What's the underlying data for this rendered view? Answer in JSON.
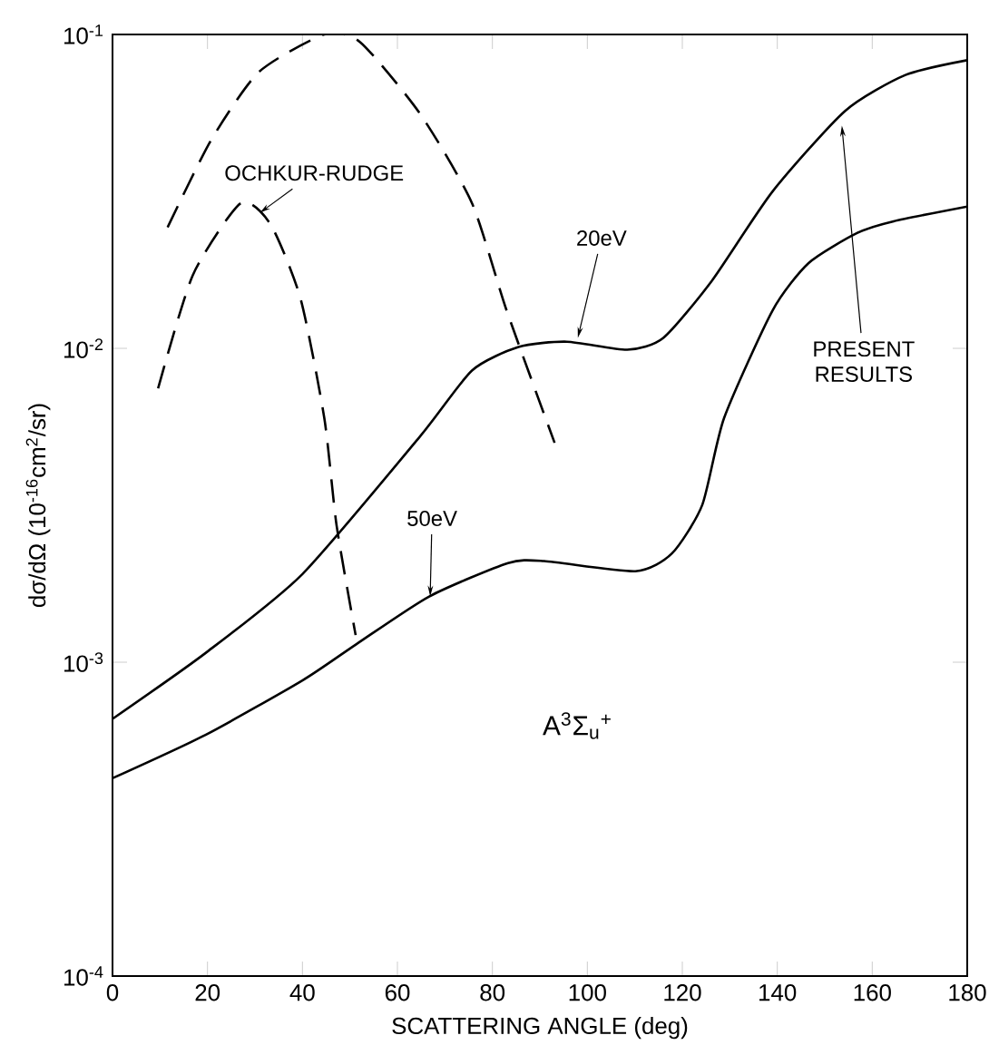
{
  "chart_data": {
    "type": "line",
    "xlabel": "SCATTERING ANGLE (deg)",
    "ylabel": "dσ/dΩ (10$^{-16}$cm$^{2}$/sr)",
    "xlim": [
      0,
      180
    ],
    "ylim": [
      0.0001,
      0.1
    ],
    "log": "y",
    "marker": "none",
    "xticks": [
      0,
      20,
      40,
      60,
      80,
      100,
      120,
      140,
      160,
      180
    ],
    "yticks": [
      {
        "value": 0.0001,
        "label": "10$^{-4}$"
      },
      {
        "value": 0.001,
        "label": "10$^{-3}$"
      },
      {
        "value": 0.01,
        "label": "10$^{-2}$"
      },
      {
        "value": 0.1,
        "label": "10$^{-1}$"
      }
    ],
    "series": [
      {
        "color": "#000000",
        "line_style": "solid",
        "x": [
          0,
          19.6,
          40,
          64.8,
          75.7,
          85.5,
          95.7,
          108.4,
          116,
          126.2,
          139,
          154.3,
          167,
          180
        ],
        "values": [
          0.00066,
          0.00107,
          0.00191,
          0.00525,
          0.0085,
          0.0101,
          0.0105,
          0.0099,
          0.0108,
          0.0164,
          0.0316,
          0.0571,
          0.0743,
          0.0828
        ]
      },
      {
        "color": "#000000",
        "line_style": "solid",
        "x": [
          0,
          19.6,
          40,
          51.3,
          66.7,
          83.3,
          90.9,
          110.1,
          117.8,
          124.2,
          128.8,
          139,
          146.6,
          156.8,
          164.5,
          180
        ],
        "values": [
          0.000427,
          0.000587,
          0.000875,
          0.00114,
          0.00162,
          0.00207,
          0.0021,
          0.00195,
          0.00222,
          0.00317,
          0.006,
          0.0132,
          0.0187,
          0.0233,
          0.0254,
          0.0283
        ]
      },
      {
        "color": "#000000",
        "line_style": "dashed",
        "x": [
          11.6,
          20.7,
          30.8,
          44.6,
          52.2,
          64.8,
          75.7,
          83,
          93.1
        ],
        "values": [
          0.0243,
          0.0459,
          0.0759,
          0.1,
          0.0944,
          0.0558,
          0.029,
          0.0132,
          0.005
        ]
      },
      {
        "color": "#000000",
        "line_style": "dashed",
        "x": [
          9.6,
          16.9,
          27,
          33.3,
          39.6,
          44.6,
          47.2,
          51.2
        ],
        "values": [
          0.00746,
          0.0171,
          0.029,
          0.0248,
          0.0144,
          0.006,
          0.00272,
          0.00122
        ]
      }
    ],
    "annotations": [
      {
        "text": "OCHKUR-RUDGE",
        "x": 31,
        "y": 0.027
      },
      {
        "text": "20eV",
        "x": 98,
        "y": 0.0108
      },
      {
        "text": "50eV",
        "x": 66.9,
        "y": 0.00162
      },
      {
        "text": "PRESENT RESULTS",
        "x": 153.6,
        "y": 0.0512
      },
      "A$^{3}$Σ$_{u}$$^{+}$"
    ]
  }
}
